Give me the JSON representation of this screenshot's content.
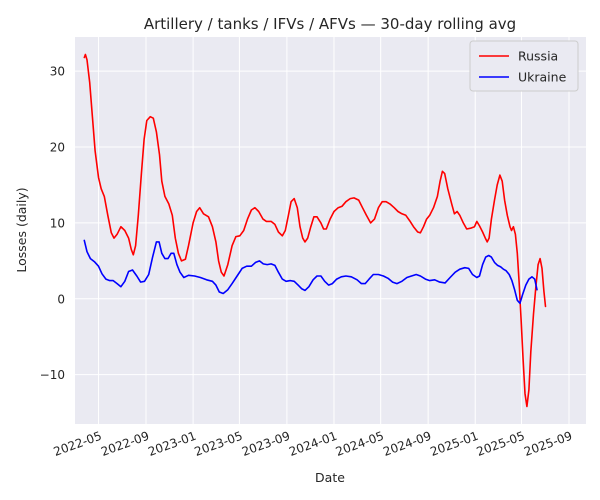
{
  "chart_data": {
    "type": "line",
    "title": "Artillery / tanks / IFVs / AFVs — 30-day rolling avg",
    "xlabel": "Date",
    "ylabel": "Losses (daily)",
    "xlim": [
      "2022-03-01",
      "2025-10-15"
    ],
    "ylim": [
      -16.5,
      34.5
    ],
    "yticks": [
      -10,
      0,
      10,
      20,
      30
    ],
    "xticks": [
      "2022-05",
      "2022-09",
      "2023-01",
      "2023-05",
      "2023-09",
      "2024-01",
      "2024-05",
      "2024-09",
      "2025-01",
      "2025-05",
      "2025-09"
    ],
    "grid": true,
    "legend_position": "top-right",
    "background": "#eaeaf2",
    "series": [
      {
        "name": "Russia",
        "color": "#ff0000",
        "points": [
          [
            "2022-03-25",
            31.8
          ],
          [
            "2022-03-28",
            32.2
          ],
          [
            "2022-04-01",
            31.5
          ],
          [
            "2022-04-08",
            28.5
          ],
          [
            "2022-04-15",
            24.0
          ],
          [
            "2022-04-22",
            19.5
          ],
          [
            "2022-05-01",
            16.0
          ],
          [
            "2022-05-08",
            14.5
          ],
          [
            "2022-05-16",
            13.5
          ],
          [
            "2022-05-25",
            11.0
          ],
          [
            "2022-06-03",
            8.7
          ],
          [
            "2022-06-10",
            8.0
          ],
          [
            "2022-06-18",
            8.5
          ],
          [
            "2022-06-28",
            9.5
          ],
          [
            "2022-07-08",
            9.0
          ],
          [
            "2022-07-18",
            8.0
          ],
          [
            "2022-07-25",
            6.5
          ],
          [
            "2022-07-30",
            5.8
          ],
          [
            "2022-08-05",
            7.0
          ],
          [
            "2022-08-12",
            11.0
          ],
          [
            "2022-08-20",
            16.5
          ],
          [
            "2022-08-27",
            21.0
          ],
          [
            "2022-09-03",
            23.5
          ],
          [
            "2022-09-12",
            24.0
          ],
          [
            "2022-09-20",
            23.8
          ],
          [
            "2022-09-28",
            22.0
          ],
          [
            "2022-10-06",
            19.0
          ],
          [
            "2022-10-12",
            15.5
          ],
          [
            "2022-10-20",
            13.5
          ],
          [
            "2022-10-30",
            12.5
          ],
          [
            "2022-11-08",
            11.0
          ],
          [
            "2022-11-16",
            8.0
          ],
          [
            "2022-11-24",
            6.0
          ],
          [
            "2022-12-02",
            5.0
          ],
          [
            "2022-12-12",
            5.2
          ],
          [
            "2022-12-20",
            7.0
          ],
          [
            "2023-01-01",
            10.0
          ],
          [
            "2023-01-10",
            11.5
          ],
          [
            "2023-01-18",
            12.0
          ],
          [
            "2023-01-28",
            11.2
          ],
          [
            "2023-02-10",
            10.8
          ],
          [
            "2023-02-20",
            9.5
          ],
          [
            "2023-03-01",
            7.5
          ],
          [
            "2023-03-08",
            5.0
          ],
          [
            "2023-03-15",
            3.5
          ],
          [
            "2023-03-22",
            3.0
          ],
          [
            "2023-04-01",
            4.5
          ],
          [
            "2023-04-12",
            7.0
          ],
          [
            "2023-04-22",
            8.2
          ],
          [
            "2023-05-02",
            8.3
          ],
          [
            "2023-05-12",
            9.0
          ],
          [
            "2023-05-22",
            10.5
          ],
          [
            "2023-06-01",
            11.7
          ],
          [
            "2023-06-10",
            12.0
          ],
          [
            "2023-06-20",
            11.5
          ],
          [
            "2023-07-01",
            10.5
          ],
          [
            "2023-07-10",
            10.2
          ],
          [
            "2023-07-22",
            10.2
          ],
          [
            "2023-08-01",
            9.8
          ],
          [
            "2023-08-10",
            8.8
          ],
          [
            "2023-08-20",
            8.3
          ],
          [
            "2023-08-28",
            9.0
          ],
          [
            "2023-09-05",
            11.0
          ],
          [
            "2023-09-12",
            12.8
          ],
          [
            "2023-09-20",
            13.2
          ],
          [
            "2023-09-28",
            12.0
          ],
          [
            "2023-10-05",
            9.5
          ],
          [
            "2023-10-12",
            8.0
          ],
          [
            "2023-10-18",
            7.5
          ],
          [
            "2023-10-25",
            8.0
          ],
          [
            "2023-11-02",
            9.5
          ],
          [
            "2023-11-10",
            10.8
          ],
          [
            "2023-11-18",
            10.8
          ],
          [
            "2023-11-28",
            10.0
          ],
          [
            "2023-12-05",
            9.2
          ],
          [
            "2023-12-12",
            9.2
          ],
          [
            "2023-12-22",
            10.5
          ],
          [
            "2024-01-01",
            11.5
          ],
          [
            "2024-01-12",
            12.0
          ],
          [
            "2024-01-22",
            12.2
          ],
          [
            "2024-02-01",
            12.8
          ],
          [
            "2024-02-12",
            13.2
          ],
          [
            "2024-02-22",
            13.3
          ],
          [
            "2024-03-05",
            13.0
          ],
          [
            "2024-03-15",
            12.0
          ],
          [
            "2024-03-25",
            11.0
          ],
          [
            "2024-04-05",
            10.0
          ],
          [
            "2024-04-15",
            10.5
          ],
          [
            "2024-04-25",
            12.0
          ],
          [
            "2024-05-05",
            12.8
          ],
          [
            "2024-05-15",
            12.8
          ],
          [
            "2024-05-25",
            12.5
          ],
          [
            "2024-06-05",
            12.0
          ],
          [
            "2024-06-15",
            11.5
          ],
          [
            "2024-06-25",
            11.2
          ],
          [
            "2024-07-05",
            11.0
          ],
          [
            "2024-07-15",
            10.3
          ],
          [
            "2024-07-25",
            9.5
          ],
          [
            "2024-08-05",
            8.8
          ],
          [
            "2024-08-12",
            8.7
          ],
          [
            "2024-08-20",
            9.5
          ],
          [
            "2024-08-28",
            10.5
          ],
          [
            "2024-09-05",
            11.0
          ],
          [
            "2024-09-15",
            12.0
          ],
          [
            "2024-09-25",
            13.5
          ],
          [
            "2024-10-02",
            15.5
          ],
          [
            "2024-10-08",
            16.8
          ],
          [
            "2024-10-14",
            16.5
          ],
          [
            "2024-10-22",
            14.5
          ],
          [
            "2024-11-01",
            12.5
          ],
          [
            "2024-11-08",
            11.2
          ],
          [
            "2024-11-15",
            11.5
          ],
          [
            "2024-11-22",
            11.0
          ],
          [
            "2024-12-01",
            10.0
          ],
          [
            "2024-12-10",
            9.2
          ],
          [
            "2024-12-20",
            9.3
          ],
          [
            "2024-12-30",
            9.5
          ],
          [
            "2025-01-05",
            10.2
          ],
          [
            "2025-01-12",
            9.6
          ],
          [
            "2025-01-20",
            8.8
          ],
          [
            "2025-01-27",
            8.0
          ],
          [
            "2025-02-01",
            7.5
          ],
          [
            "2025-02-06",
            8.0
          ],
          [
            "2025-02-12",
            10.5
          ],
          [
            "2025-02-20",
            13.0
          ],
          [
            "2025-02-27",
            15.0
          ],
          [
            "2025-03-06",
            16.3
          ],
          [
            "2025-03-12",
            15.5
          ],
          [
            "2025-03-18",
            13.0
          ],
          [
            "2025-03-25",
            11.0
          ],
          [
            "2025-04-01",
            9.5
          ],
          [
            "2025-04-05",
            9.0
          ],
          [
            "2025-04-10",
            9.5
          ],
          [
            "2025-04-15",
            8.5
          ],
          [
            "2025-04-20",
            6.0
          ],
          [
            "2025-04-25",
            2.0
          ],
          [
            "2025-04-30",
            -3.0
          ],
          [
            "2025-05-05",
            -8.0
          ],
          [
            "2025-05-10",
            -12.5
          ],
          [
            "2025-05-15",
            -14.2
          ],
          [
            "2025-05-20",
            -12.0
          ],
          [
            "2025-05-25",
            -7.0
          ],
          [
            "2025-06-01",
            -2.0
          ],
          [
            "2025-06-07",
            1.5
          ],
          [
            "2025-06-13",
            4.5
          ],
          [
            "2025-06-18",
            5.3
          ],
          [
            "2025-06-23",
            4.0
          ],
          [
            "2025-06-28",
            1.0
          ],
          [
            "2025-07-02",
            -1.0
          ]
        ]
      },
      {
        "name": "Ukraine",
        "color": "#0000ff",
        "points": [
          [
            "2022-03-25",
            7.7
          ],
          [
            "2022-04-01",
            6.2
          ],
          [
            "2022-04-10",
            5.3
          ],
          [
            "2022-04-20",
            4.9
          ],
          [
            "2022-05-01",
            4.3
          ],
          [
            "2022-05-10",
            3.3
          ],
          [
            "2022-05-20",
            2.6
          ],
          [
            "2022-05-30",
            2.4
          ],
          [
            "2022-06-08",
            2.4
          ],
          [
            "2022-06-18",
            2.0
          ],
          [
            "2022-06-28",
            1.6
          ],
          [
            "2022-07-08",
            2.3
          ],
          [
            "2022-07-18",
            3.6
          ],
          [
            "2022-07-28",
            3.8
          ],
          [
            "2022-08-08",
            3.0
          ],
          [
            "2022-08-18",
            2.2
          ],
          [
            "2022-08-28",
            2.3
          ],
          [
            "2022-09-08",
            3.2
          ],
          [
            "2022-09-18",
            5.5
          ],
          [
            "2022-09-28",
            7.5
          ],
          [
            "2022-10-05",
            7.5
          ],
          [
            "2022-10-12",
            6.0
          ],
          [
            "2022-10-20",
            5.3
          ],
          [
            "2022-10-28",
            5.3
          ],
          [
            "2022-11-05",
            6.0
          ],
          [
            "2022-11-12",
            6.0
          ],
          [
            "2022-11-20",
            4.5
          ],
          [
            "2022-11-28",
            3.5
          ],
          [
            "2022-12-08",
            2.8
          ],
          [
            "2022-12-20",
            3.1
          ],
          [
            "2023-01-05",
            3.0
          ],
          [
            "2023-01-20",
            2.8
          ],
          [
            "2023-02-05",
            2.5
          ],
          [
            "2023-02-20",
            2.3
          ],
          [
            "2023-03-01",
            1.8
          ],
          [
            "2023-03-10",
            0.9
          ],
          [
            "2023-03-20",
            0.7
          ],
          [
            "2023-04-01",
            1.2
          ],
          [
            "2023-04-12",
            2.0
          ],
          [
            "2023-04-25",
            3.0
          ],
          [
            "2023-05-08",
            4.0
          ],
          [
            "2023-05-20",
            4.3
          ],
          [
            "2023-06-01",
            4.3
          ],
          [
            "2023-06-12",
            4.8
          ],
          [
            "2023-06-22",
            5.0
          ],
          [
            "2023-07-02",
            4.6
          ],
          [
            "2023-07-12",
            4.5
          ],
          [
            "2023-07-22",
            4.6
          ],
          [
            "2023-08-01",
            4.4
          ],
          [
            "2023-08-10",
            3.5
          ],
          [
            "2023-08-20",
            2.6
          ],
          [
            "2023-08-30",
            2.3
          ],
          [
            "2023-09-10",
            2.4
          ],
          [
            "2023-09-20",
            2.3
          ],
          [
            "2023-09-30",
            1.8
          ],
          [
            "2023-10-10",
            1.3
          ],
          [
            "2023-10-18",
            1.1
          ],
          [
            "2023-10-28",
            1.6
          ],
          [
            "2023-11-08",
            2.5
          ],
          [
            "2023-11-18",
            3.0
          ],
          [
            "2023-11-28",
            3.0
          ],
          [
            "2023-12-08",
            2.3
          ],
          [
            "2023-12-18",
            1.8
          ],
          [
            "2023-12-28",
            2.0
          ],
          [
            "2024-01-08",
            2.6
          ],
          [
            "2024-01-20",
            2.9
          ],
          [
            "2024-02-01",
            3.0
          ],
          [
            "2024-02-15",
            2.9
          ],
          [
            "2024-03-01",
            2.5
          ],
          [
            "2024-03-12",
            2.0
          ],
          [
            "2024-03-22",
            2.0
          ],
          [
            "2024-04-01",
            2.6
          ],
          [
            "2024-04-12",
            3.2
          ],
          [
            "2024-04-25",
            3.2
          ],
          [
            "2024-05-08",
            3.0
          ],
          [
            "2024-05-20",
            2.7
          ],
          [
            "2024-06-01",
            2.2
          ],
          [
            "2024-06-12",
            2.0
          ],
          [
            "2024-06-25",
            2.3
          ],
          [
            "2024-07-08",
            2.8
          ],
          [
            "2024-07-20",
            3.0
          ],
          [
            "2024-08-01",
            3.2
          ],
          [
            "2024-08-12",
            3.0
          ],
          [
            "2024-08-25",
            2.6
          ],
          [
            "2024-09-05",
            2.4
          ],
          [
            "2024-09-18",
            2.5
          ],
          [
            "2024-10-01",
            2.2
          ],
          [
            "2024-10-15",
            2.1
          ],
          [
            "2024-10-28",
            2.8
          ],
          [
            "2024-11-10",
            3.5
          ],
          [
            "2024-11-22",
            3.9
          ],
          [
            "2024-12-05",
            4.1
          ],
          [
            "2024-12-15",
            4.0
          ],
          [
            "2024-12-25",
            3.2
          ],
          [
            "2025-01-05",
            2.8
          ],
          [
            "2025-01-12",
            3.0
          ],
          [
            "2025-01-20",
            4.5
          ],
          [
            "2025-01-28",
            5.5
          ],
          [
            "2025-02-05",
            5.7
          ],
          [
            "2025-02-12",
            5.5
          ],
          [
            "2025-02-20",
            4.8
          ],
          [
            "2025-02-28",
            4.4
          ],
          [
            "2025-03-08",
            4.2
          ],
          [
            "2025-03-15",
            3.9
          ],
          [
            "2025-03-22",
            3.7
          ],
          [
            "2025-03-30",
            3.2
          ],
          [
            "2025-04-06",
            2.4
          ],
          [
            "2025-04-13",
            1.2
          ],
          [
            "2025-04-20",
            -0.2
          ],
          [
            "2025-04-27",
            -0.6
          ],
          [
            "2025-05-04",
            0.6
          ],
          [
            "2025-05-12",
            1.8
          ],
          [
            "2025-05-20",
            2.6
          ],
          [
            "2025-05-28",
            2.9
          ],
          [
            "2025-06-04",
            2.6
          ],
          [
            "2025-06-10",
            1.2
          ]
        ]
      }
    ]
  }
}
